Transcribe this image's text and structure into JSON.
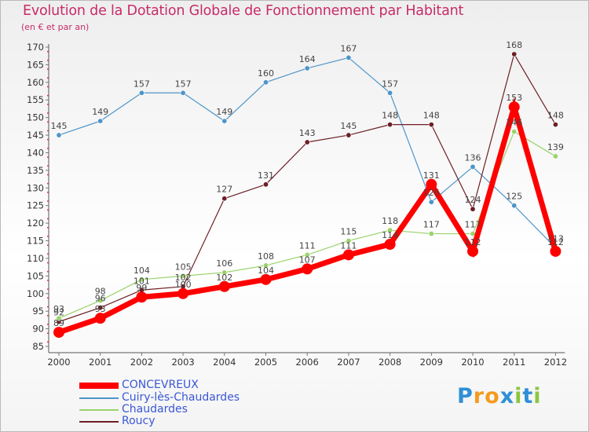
{
  "chart_data": {
    "type": "line",
    "title": "Evolution de la Dotation Globale de Fonctionnement par Habitant",
    "subtitle": "(en € et par an)",
    "xlabel": "",
    "ylabel": "",
    "ylim": [
      85,
      170
    ],
    "yticks": [
      85,
      90,
      95,
      100,
      105,
      110,
      115,
      120,
      125,
      130,
      135,
      140,
      145,
      150,
      155,
      160,
      165,
      170
    ],
    "categories": [
      "2000",
      "2001",
      "2002",
      "2003",
      "2004",
      "2005",
      "2006",
      "2007",
      "2008",
      "2009",
      "2010",
      "2011",
      "2012"
    ],
    "grid": false,
    "legend_position": "bottom-left",
    "series": [
      {
        "name": "CONCEVREUX",
        "color": "#ff0000",
        "values": [
          89,
          93,
          99,
          100,
          102,
          104,
          107,
          111,
          114,
          131,
          112,
          153,
          112
        ]
      },
      {
        "name": "Cuiry-lès-Chaudardes",
        "color": "#4d95c9",
        "values": [
          145,
          149,
          157,
          157,
          149,
          160,
          164,
          167,
          157,
          126,
          136,
          125,
          113
        ]
      },
      {
        "name": "Chaudardes",
        "color": "#9ad36a",
        "values": [
          93,
          98,
          104,
          105,
          106,
          108,
          111,
          115,
          118,
          117,
          117,
          146,
          139
        ]
      },
      {
        "name": "Roucy",
        "color": "#6d1f25",
        "values": [
          92,
          96,
          101,
          102,
          127,
          131,
          143,
          145,
          148,
          148,
          124,
          168,
          148
        ]
      }
    ]
  },
  "logo": {
    "text": "Proxiti",
    "letters": [
      "P",
      "r",
      "o",
      "x",
      "i",
      "t",
      "i"
    ],
    "colors": [
      "#2f8fd6",
      "#f39a1f",
      "#f39a1f",
      "#2f8fd6",
      "#8cc63f",
      "#2f8fd6",
      "#8cc63f"
    ]
  }
}
